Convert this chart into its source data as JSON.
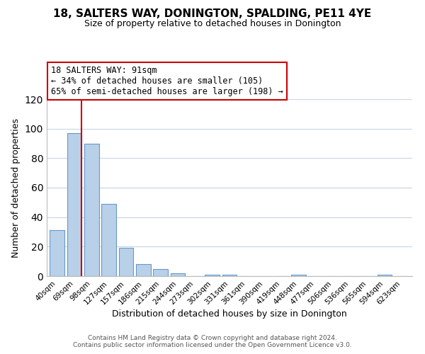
{
  "title": "18, SALTERS WAY, DONINGTON, SPALDING, PE11 4YE",
  "subtitle": "Size of property relative to detached houses in Donington",
  "xlabel": "Distribution of detached houses by size in Donington",
  "ylabel": "Number of detached properties",
  "bin_labels": [
    "40sqm",
    "69sqm",
    "98sqm",
    "127sqm",
    "157sqm",
    "186sqm",
    "215sqm",
    "244sqm",
    "273sqm",
    "302sqm",
    "331sqm",
    "361sqm",
    "390sqm",
    "419sqm",
    "448sqm",
    "477sqm",
    "506sqm",
    "536sqm",
    "565sqm",
    "594sqm",
    "623sqm"
  ],
  "bar_heights": [
    31,
    97,
    90,
    49,
    19,
    8,
    5,
    2,
    0,
    1,
    1,
    0,
    0,
    0,
    1,
    0,
    0,
    0,
    0,
    1,
    0
  ],
  "bar_color": "#b8d0e8",
  "bar_edge_color": "#6699cc",
  "ylim": [
    0,
    120
  ],
  "yticks": [
    0,
    20,
    40,
    60,
    80,
    100,
    120
  ],
  "annotation_line1": "18 SALTERS WAY: 91sqm",
  "annotation_line2": "← 34% of detached houses are smaller (105)",
  "annotation_line3": "65% of semi-detached houses are larger (198) →",
  "red_line_color": "#cc0000",
  "footer_line1": "Contains HM Land Registry data © Crown copyright and database right 2024.",
  "footer_line2": "Contains public sector information licensed under the Open Government Licence v3.0.",
  "background_color": "#ffffff",
  "grid_color": "#c8d4e8",
  "title_fontsize": 11,
  "subtitle_fontsize": 9,
  "ylabel_fontsize": 9,
  "xlabel_fontsize": 9,
  "tick_fontsize": 7.5,
  "annot_fontsize": 8.5,
  "footer_fontsize": 6.5
}
